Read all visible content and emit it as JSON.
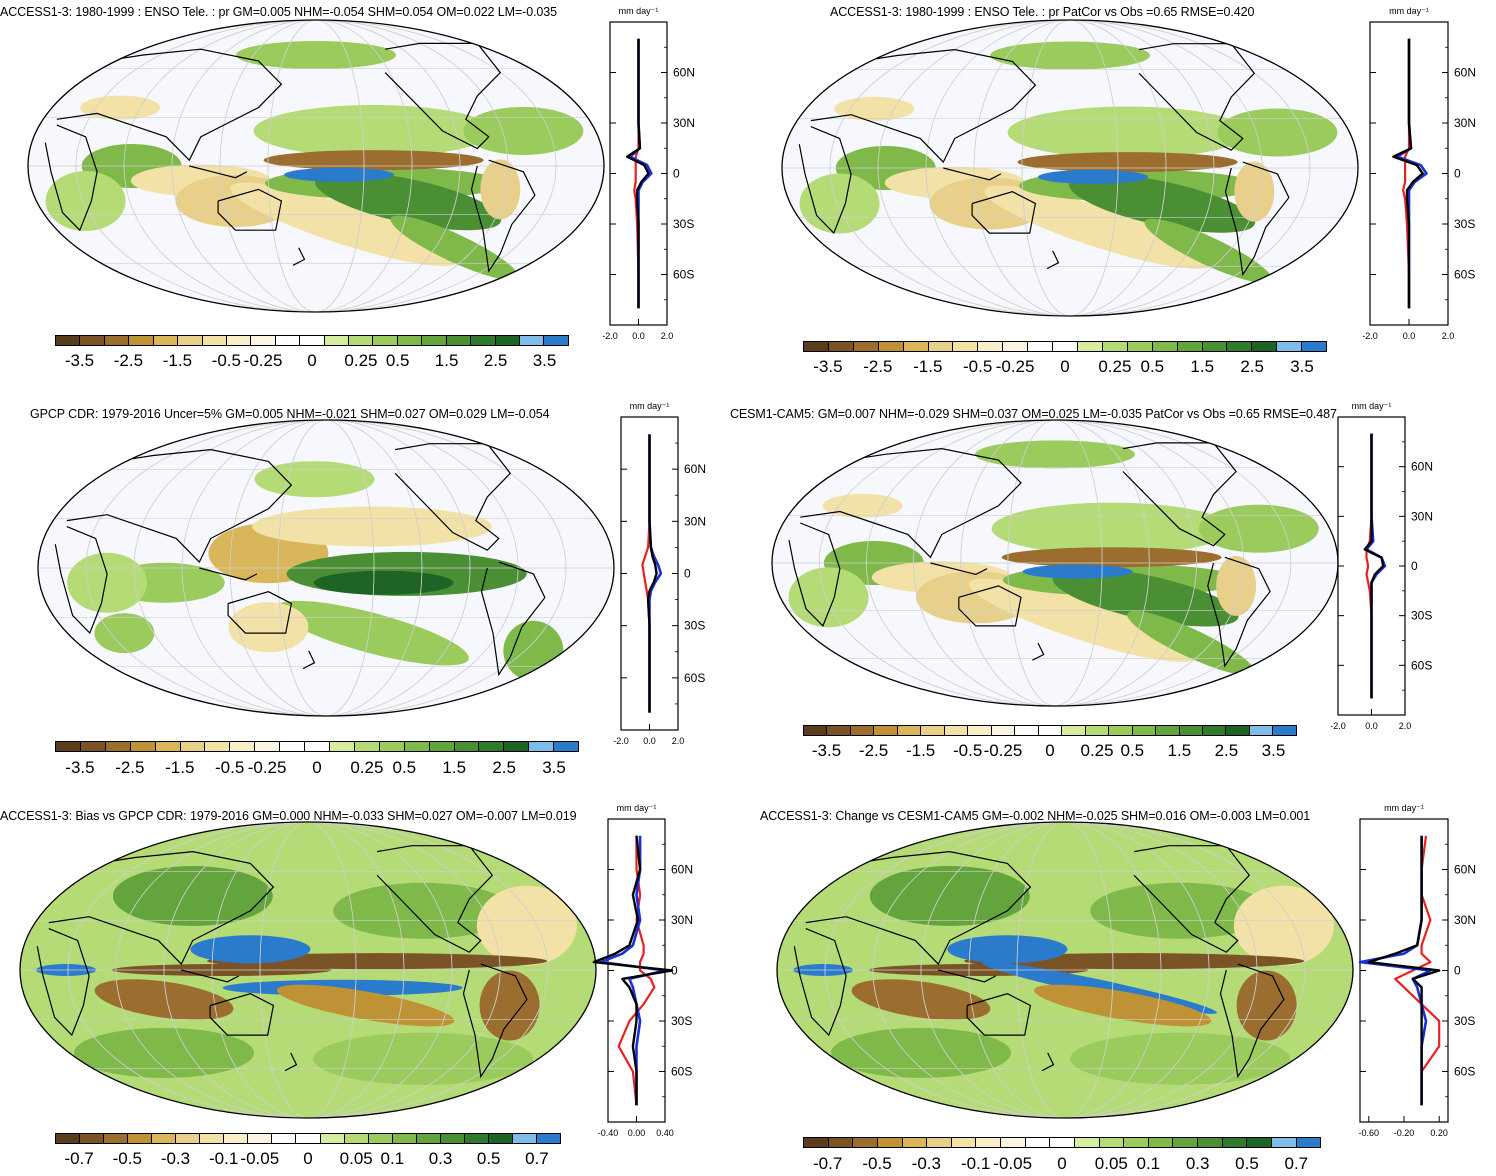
{
  "palettes": {
    "brown_green": [
      "#5a3b1c",
      "#7a5426",
      "#9b6d2e",
      "#bf9335",
      "#d8b659",
      "#e8d08a",
      "#f2e2a8",
      "#f8efc9",
      "#fbf6e4",
      "#ffffff",
      "#ffffff",
      "#d6ec9f",
      "#b4db75",
      "#9acb5c",
      "#7fb94a",
      "#63a43c",
      "#4a8f33",
      "#2f7a2c",
      "#1e6425",
      "#7fbce8",
      "#2b7bcd"
    ]
  },
  "panels": [
    {
      "id": "p1",
      "title": "ACCESS1-3: 1980-1999 : ENSO Tele. : pr GM=0.005 NHM=-0.054 SHM=0.054 OM=0.022 LM=-0.035",
      "colorbar_labels": [
        "-3.5",
        "-2.5",
        "-1.5",
        "-0.5",
        "-0.25",
        "0",
        "0.25",
        "0.5",
        "1.5",
        "2.5",
        "3.5"
      ],
      "zonal": {
        "unit": "mm day⁻¹",
        "ylabels": [
          "60N",
          "30N",
          "0",
          "30S",
          "60S"
        ],
        "xlabels": [
          "-2.0",
          "0.0",
          "2.0"
        ],
        "xlim": [
          -2,
          2
        ]
      }
    },
    {
      "id": "p2",
      "title": "ACCESS1-3: 1980-1999 : ENSO Tele. : pr PatCor vs Obs =0.65 RMSE=0.420",
      "colorbar_labels": [
        "-3.5",
        "-2.5",
        "-1.5",
        "-0.5",
        "-0.25",
        "0",
        "0.25",
        "0.5",
        "1.5",
        "2.5",
        "3.5"
      ],
      "zonal": {
        "unit": "mm day⁻¹",
        "ylabels": [
          "60N",
          "30N",
          "0",
          "30S",
          "60S"
        ],
        "xlabels": [
          "-2.0",
          "0.0",
          "2.0"
        ],
        "xlim": [
          -2,
          2
        ]
      }
    },
    {
      "id": "p3",
      "title": "GPCP CDR: 1979-2016 Uncer=5% GM=0.005 NHM=-0.021 SHM=0.027 OM=0.029 LM=-0.054",
      "colorbar_labels": [
        "-3.5",
        "-2.5",
        "-1.5",
        "-0.5",
        "-0.25",
        "0",
        "0.25",
        "0.5",
        "1.5",
        "2.5",
        "3.5"
      ],
      "zonal": {
        "unit": "mm day⁻¹",
        "ylabels": [
          "60N",
          "30N",
          "0",
          "30S",
          "60S"
        ],
        "xlabels": [
          "-2.0",
          "0.0",
          "2.0"
        ],
        "xlim": [
          -2,
          2
        ]
      }
    },
    {
      "id": "p4",
      "title": "CESM1-CAM5: GM=0.007 NHM=-0.029 SHM=0.037 OM=0.025 LM=-0.035 PatCor vs Obs =0.65 RMSE=0.487",
      "colorbar_labels": [
        "-3.5",
        "-2.5",
        "-1.5",
        "-0.5",
        "-0.25",
        "0",
        "0.25",
        "0.5",
        "1.5",
        "2.5",
        "3.5"
      ],
      "zonal": {
        "unit": "mm day⁻¹",
        "ylabels": [
          "60N",
          "30N",
          "0",
          "30S",
          "60S"
        ],
        "xlabels": [
          "-2.0",
          "0.0",
          "2.0"
        ],
        "xlim": [
          -2,
          2
        ]
      }
    },
    {
      "id": "p5",
      "title": "ACCESS1-3: Bias vs GPCP CDR: 1979-2016 GM=0.000 NHM=-0.033 SHM=0.027 OM=-0.007 LM=0.019",
      "colorbar_labels": [
        "-0.7",
        "-0.5",
        "-0.3",
        "-0.1",
        "-0.05",
        "0",
        "0.05",
        "0.1",
        "0.3",
        "0.5",
        "0.7"
      ],
      "zonal": {
        "unit": "mm day⁻¹",
        "ylabels": [
          "60N",
          "30N",
          "0",
          "30S",
          "60S"
        ],
        "xlabels": [
          "-0.40",
          "0.00",
          "0.40"
        ],
        "xlim": [
          -0.4,
          0.4
        ]
      }
    },
    {
      "id": "p6",
      "title": "ACCESS1-3: Change vs CESM1-CAM5 GM=-0.002 NHM=-0.025 SHM=0.016 OM=-0.003 LM=0.001",
      "colorbar_labels": [
        "-0.7",
        "-0.5",
        "-0.3",
        "-0.1",
        "-0.05",
        "0",
        "0.05",
        "0.1",
        "0.3",
        "0.5",
        "0.7"
      ],
      "zonal": {
        "unit": "mm day⁻¹",
        "ylabels": [
          "60N",
          "30N",
          "0",
          "30S",
          "60S"
        ],
        "xlabels": [
          "-0.60",
          "-0.20",
          "0.20"
        ],
        "xlim": [
          -0.7,
          0.3
        ]
      }
    }
  ],
  "chart_data": [
    {
      "type": "heatmap",
      "title": "ACCESS1-3: 1980-1999 : ENSO Tele. : pr GM=0.005 NHM=-0.054 SHM=0.054 OM=0.022 LM=-0.035",
      "colorbar": [
        -3.5,
        -2.5,
        -1.5,
        -0.5,
        -0.25,
        0,
        0.25,
        0.5,
        1.5,
        2.5,
        3.5
      ],
      "unit": "mm day-1",
      "zonal_mean": {
        "lat": [
          80,
          60,
          30,
          15,
          10,
          5,
          0,
          -5,
          -10,
          -15,
          -30,
          -60,
          -80
        ],
        "model": [
          0.0,
          0.0,
          0.0,
          0.1,
          -0.8,
          0.4,
          0.7,
          0.2,
          -0.1,
          -0.1,
          0.0,
          0.0,
          0.0
        ],
        "obs": [
          0.0,
          0.0,
          0.0,
          0.1,
          -0.6,
          0.6,
          0.9,
          0.3,
          0.0,
          0.0,
          0.0,
          0.0,
          0.0
        ],
        "diff": [
          0.0,
          0.0,
          0.0,
          0.0,
          -0.2,
          -0.2,
          -0.2,
          -0.2,
          -0.3,
          -0.2,
          -0.1,
          0.0,
          0.0
        ]
      }
    },
    {
      "type": "heatmap",
      "title": "ACCESS1-3: 1980-1999 : ENSO Tele. : pr PatCor vs Obs =0.65 RMSE=0.420",
      "colorbar": [
        -3.5,
        -2.5,
        -1.5,
        -0.5,
        -0.25,
        0,
        0.25,
        0.5,
        1.5,
        2.5,
        3.5
      ],
      "unit": "mm day-1",
      "zonal_mean": {
        "lat": [
          80,
          60,
          30,
          15,
          10,
          5,
          0,
          -5,
          -10,
          -15,
          -30,
          -60,
          -80
        ],
        "model": [
          0.0,
          0.0,
          0.0,
          0.1,
          -0.8,
          0.4,
          0.7,
          0.2,
          -0.1,
          -0.1,
          0.0,
          0.0,
          0.0
        ],
        "obs": [
          0.0,
          0.0,
          0.0,
          0.1,
          -0.6,
          0.6,
          0.9,
          0.3,
          0.0,
          0.0,
          0.0,
          0.0,
          0.0
        ],
        "diff": [
          0.0,
          0.0,
          0.0,
          0.0,
          -0.2,
          -0.2,
          -0.2,
          -0.2,
          -0.3,
          -0.2,
          -0.1,
          0.0,
          0.0
        ]
      }
    },
    {
      "type": "heatmap",
      "title": "GPCP CDR: 1979-2016 Uncer=5% GM=0.005 NHM=-0.021 SHM=0.027 OM=0.029 LM=-0.054",
      "colorbar": [
        -3.5,
        -2.5,
        -1.5,
        -0.5,
        -0.25,
        0,
        0.25,
        0.5,
        1.5,
        2.5,
        3.5
      ],
      "unit": "mm day-1",
      "zonal_mean": {
        "lat": [
          80,
          60,
          30,
          15,
          10,
          5,
          0,
          -5,
          -10,
          -15,
          -30,
          -60,
          -80
        ],
        "model": [
          0.0,
          0.0,
          0.0,
          0.1,
          0.2,
          0.4,
          0.5,
          0.3,
          0.0,
          -0.1,
          0.0,
          0.0,
          0.0
        ],
        "obs": [
          0.0,
          0.0,
          0.0,
          0.1,
          0.3,
          0.6,
          0.8,
          0.4,
          0.1,
          0.0,
          0.0,
          0.0,
          0.0
        ],
        "diff": [
          0.0,
          0.0,
          0.0,
          -0.1,
          -0.3,
          -0.5,
          -0.4,
          -0.3,
          -0.2,
          -0.1,
          0.0,
          0.0,
          0.0
        ]
      }
    },
    {
      "type": "heatmap",
      "title": "CESM1-CAM5: GM=0.007 NHM=-0.029 SHM=0.037 OM=0.025 LM=-0.035 PatCor vs Obs =0.65 RMSE=0.487",
      "colorbar": [
        -3.5,
        -2.5,
        -1.5,
        -0.5,
        -0.25,
        0,
        0.25,
        0.5,
        1.5,
        2.5,
        3.5
      ],
      "unit": "mm day-1",
      "zonal_mean": {
        "lat": [
          80,
          60,
          30,
          15,
          10,
          5,
          0,
          -5,
          -10,
          -15,
          -30,
          -60,
          -80
        ],
        "model": [
          0.0,
          0.0,
          0.0,
          0.0,
          -0.4,
          0.6,
          0.7,
          0.2,
          0.0,
          0.0,
          0.0,
          0.0,
          0.0
        ],
        "obs": [
          0.0,
          0.0,
          0.0,
          0.1,
          -0.3,
          0.6,
          0.8,
          0.3,
          0.0,
          0.0,
          0.0,
          0.0,
          0.0
        ],
        "diff": [
          0.0,
          0.0,
          0.0,
          -0.1,
          -0.3,
          -0.3,
          -0.2,
          -0.3,
          -0.2,
          -0.1,
          0.0,
          0.0,
          0.0
        ]
      }
    },
    {
      "type": "heatmap",
      "title": "ACCESS1-3: Bias vs GPCP CDR: 1979-2016 GM=0.000 NHM=-0.033 SHM=0.027 OM=-0.007 LM=0.019",
      "colorbar": [
        -0.7,
        -0.5,
        -0.3,
        -0.1,
        -0.05,
        0,
        0.05,
        0.1,
        0.3,
        0.5,
        0.7
      ],
      "unit": "mm day-1",
      "zonal_mean": {
        "lat": [
          80,
          60,
          45,
          30,
          15,
          10,
          5,
          0,
          -5,
          -10,
          -20,
          -30,
          -45,
          -60,
          -80
        ],
        "model": [
          0.0,
          0.05,
          -0.05,
          0.02,
          -0.1,
          -0.3,
          -0.6,
          0.5,
          -0.2,
          -0.1,
          0.0,
          0.0,
          -0.05,
          0.0,
          0.0
        ],
        "obs": [
          0.05,
          0.05,
          0.0,
          0.05,
          -0.05,
          -0.2,
          -0.5,
          0.4,
          -0.1,
          -0.05,
          0.0,
          0.05,
          0.0,
          0.0,
          0.0
        ],
        "diff": [
          0.0,
          0.0,
          0.05,
          0.0,
          0.1,
          0.1,
          0.05,
          0.05,
          0.2,
          0.25,
          0.1,
          -0.1,
          -0.25,
          -0.05,
          0.0
        ]
      }
    },
    {
      "type": "heatmap",
      "title": "ACCESS1-3: Change vs CESM1-CAM5 GM=-0.002 NHM=-0.025 SHM=0.016 OM=-0.003 LM=0.001",
      "colorbar": [
        -0.7,
        -0.5,
        -0.3,
        -0.1,
        -0.05,
        0,
        0.05,
        0.1,
        0.3,
        0.5,
        0.7
      ],
      "unit": "mm day-1",
      "zonal_mean": {
        "lat": [
          80,
          60,
          45,
          30,
          15,
          10,
          5,
          0,
          -5,
          -10,
          -20,
          -30,
          -45,
          -60,
          -80
        ],
        "model": [
          0.0,
          0.0,
          0.0,
          0.0,
          -0.05,
          -0.3,
          -0.6,
          0.2,
          -0.1,
          0.0,
          0.0,
          0.0,
          0.0,
          0.0,
          0.0
        ],
        "obs": [
          0.0,
          0.0,
          0.0,
          0.0,
          -0.05,
          -0.2,
          -0.7,
          0.1,
          -0.1,
          -0.05,
          0.0,
          0.05,
          0.0,
          0.0,
          0.0
        ],
        "diff": [
          0.05,
          0.0,
          0.0,
          0.1,
          0.0,
          0.0,
          0.1,
          -0.1,
          -0.3,
          -0.2,
          0.0,
          0.2,
          0.2,
          0.0,
          0.0
        ]
      }
    }
  ]
}
